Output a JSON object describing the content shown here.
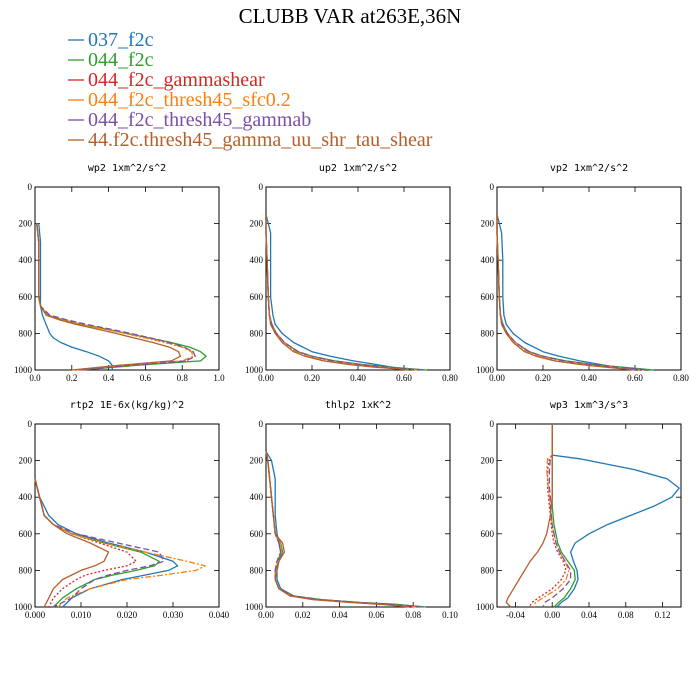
{
  "figure": {
    "title": "CLUBB VAR at263E,36N"
  },
  "legend": [
    {
      "name": "037_f2c",
      "color": "#1f77b4",
      "dash": "solid"
    },
    {
      "name": "044_f2c",
      "color": "#2ca02c",
      "dash": "solid"
    },
    {
      "name": "044_f2c_gammashear",
      "color": "#d62728",
      "dash": "dot"
    },
    {
      "name": "044_f2c_thresh45_sfc0.2",
      "color": "#ff7f0e",
      "dash": "dashdot"
    },
    {
      "name": "044_f2c_thresh45_gammab",
      "color": "#7b4fa6",
      "dash": "dash"
    },
    {
      "name": "44.f2c.thresh45_gamma_uu_shr_tau_shear",
      "color": "#b5602b",
      "dash": "solid"
    }
  ],
  "chart_data": [
    {
      "type": "line",
      "title": "wp2  1xm^2/s^2",
      "xlim": [
        0,
        1.0
      ],
      "ylim": [
        0,
        1000
      ],
      "y_inverted": true,
      "xticks": [
        0,
        0.2,
        0.4,
        0.6,
        0.8,
        1.0
      ],
      "xtick_labels": [
        "0.0",
        "0.2",
        "0.4",
        "0.6",
        "0.8",
        "1.0"
      ],
      "yticks": [
        0,
        200,
        400,
        600,
        800,
        1000
      ],
      "ytick_labels": [
        "0",
        "200",
        "400",
        "600",
        "800",
        "1000"
      ],
      "y": [
        200,
        300,
        400,
        500,
        600,
        650,
        700,
        725,
        750,
        775,
        800,
        825,
        850,
        875,
        900,
        925,
        950,
        975,
        1000
      ],
      "series": [
        {
          "values": [
            0.02,
            0.03,
            0.03,
            0.03,
            0.03,
            0.03,
            0.04,
            0.05,
            0.06,
            0.07,
            0.08,
            0.1,
            0.14,
            0.2,
            0.28,
            0.35,
            0.4,
            0.42,
            0.42
          ]
        },
        {
          "values": [
            0.01,
            0.02,
            0.02,
            0.02,
            0.02,
            0.03,
            0.07,
            0.15,
            0.25,
            0.38,
            0.5,
            0.62,
            0.74,
            0.84,
            0.9,
            0.93,
            0.9,
            0.55,
            0.25
          ]
        },
        {
          "values": [
            0.01,
            0.02,
            0.02,
            0.02,
            0.02,
            0.03,
            0.07,
            0.15,
            0.25,
            0.37,
            0.49,
            0.6,
            0.71,
            0.8,
            0.86,
            0.87,
            0.82,
            0.5,
            0.24
          ]
        },
        {
          "values": [
            0.01,
            0.02,
            0.02,
            0.02,
            0.02,
            0.03,
            0.07,
            0.15,
            0.25,
            0.37,
            0.49,
            0.6,
            0.71,
            0.8,
            0.85,
            0.86,
            0.8,
            0.48,
            0.22
          ]
        },
        {
          "values": [
            0.01,
            0.02,
            0.02,
            0.02,
            0.02,
            0.03,
            0.08,
            0.17,
            0.28,
            0.4,
            0.52,
            0.63,
            0.73,
            0.81,
            0.86,
            0.87,
            0.82,
            0.52,
            0.25
          ]
        },
        {
          "values": [
            0.01,
            0.02,
            0.02,
            0.02,
            0.02,
            0.03,
            0.06,
            0.13,
            0.22,
            0.33,
            0.44,
            0.54,
            0.64,
            0.73,
            0.78,
            0.79,
            0.74,
            0.45,
            0.2
          ]
        }
      ]
    },
    {
      "type": "line",
      "title": "up2  1xm^2/s^2",
      "xlim": [
        0,
        0.8
      ],
      "ylim": [
        0,
        1000
      ],
      "y_inverted": true,
      "xticks": [
        0,
        0.2,
        0.4,
        0.6,
        0.8
      ],
      "xtick_labels": [
        "0.00",
        "0.20",
        "0.40",
        "0.60",
        "0.80"
      ],
      "yticks": [
        0,
        200,
        400,
        600,
        800,
        1000
      ],
      "ytick_labels": [
        "0",
        "200",
        "400",
        "600",
        "800",
        "1000"
      ],
      "y": [
        150,
        250,
        400,
        600,
        700,
        750,
        800,
        850,
        900,
        925,
        950,
        970,
        985,
        995,
        1000
      ],
      "series": [
        {
          "values": [
            0.0,
            0.02,
            0.02,
            0.02,
            0.03,
            0.04,
            0.07,
            0.12,
            0.2,
            0.28,
            0.38,
            0.48,
            0.55,
            0.6,
            0.62
          ]
        },
        {
          "values": [
            0.0,
            0.0,
            0.005,
            0.01,
            0.015,
            0.025,
            0.045,
            0.08,
            0.14,
            0.2,
            0.3,
            0.42,
            0.55,
            0.65,
            0.7
          ]
        },
        {
          "values": [
            0.0,
            0.0,
            0.005,
            0.01,
            0.015,
            0.025,
            0.045,
            0.08,
            0.13,
            0.19,
            0.28,
            0.4,
            0.52,
            0.62,
            0.66
          ]
        },
        {
          "values": [
            0.0,
            0.0,
            0.005,
            0.01,
            0.015,
            0.025,
            0.045,
            0.08,
            0.13,
            0.19,
            0.28,
            0.4,
            0.52,
            0.62,
            0.66
          ]
        },
        {
          "values": [
            0.0,
            0.0,
            0.005,
            0.01,
            0.015,
            0.025,
            0.045,
            0.08,
            0.14,
            0.2,
            0.29,
            0.41,
            0.53,
            0.63,
            0.68
          ]
        },
        {
          "values": [
            0.0,
            0.0,
            0.005,
            0.01,
            0.015,
            0.02,
            0.04,
            0.07,
            0.12,
            0.17,
            0.25,
            0.36,
            0.48,
            0.58,
            0.62
          ]
        }
      ]
    },
    {
      "type": "line",
      "title": "vp2  1xm^2/s^2",
      "xlim": [
        0,
        0.8
      ],
      "ylim": [
        0,
        1000
      ],
      "y_inverted": true,
      "xticks": [
        0,
        0.2,
        0.4,
        0.6,
        0.8
      ],
      "xtick_labels": [
        "0.00",
        "0.20",
        "0.40",
        "0.60",
        "0.80"
      ],
      "yticks": [
        0,
        200,
        400,
        600,
        800,
        1000
      ],
      "ytick_labels": [
        "0",
        "200",
        "400",
        "600",
        "800",
        "1000"
      ],
      "y": [
        150,
        250,
        400,
        600,
        700,
        750,
        800,
        850,
        900,
        925,
        950,
        970,
        985,
        995,
        1000
      ],
      "series": [
        {
          "values": [
            0.0,
            0.02,
            0.025,
            0.025,
            0.03,
            0.04,
            0.07,
            0.12,
            0.2,
            0.27,
            0.36,
            0.45,
            0.52,
            0.58,
            0.6
          ]
        },
        {
          "values": [
            0.0,
            0.0,
            0.005,
            0.01,
            0.015,
            0.025,
            0.045,
            0.08,
            0.14,
            0.2,
            0.3,
            0.42,
            0.55,
            0.64,
            0.68
          ]
        },
        {
          "values": [
            0.0,
            0.0,
            0.005,
            0.01,
            0.015,
            0.025,
            0.045,
            0.08,
            0.13,
            0.19,
            0.28,
            0.4,
            0.52,
            0.6,
            0.64
          ]
        },
        {
          "values": [
            0.0,
            0.0,
            0.005,
            0.01,
            0.015,
            0.025,
            0.045,
            0.08,
            0.13,
            0.19,
            0.28,
            0.4,
            0.52,
            0.6,
            0.64
          ]
        },
        {
          "values": [
            0.0,
            0.0,
            0.005,
            0.01,
            0.015,
            0.025,
            0.045,
            0.08,
            0.14,
            0.2,
            0.29,
            0.41,
            0.53,
            0.62,
            0.66
          ]
        },
        {
          "values": [
            0.0,
            0.0,
            0.005,
            0.01,
            0.015,
            0.02,
            0.04,
            0.07,
            0.12,
            0.17,
            0.25,
            0.36,
            0.48,
            0.56,
            0.6
          ]
        }
      ]
    },
    {
      "type": "line",
      "title": "rtp2  1E-6x(kg/kg)^2",
      "xlim": [
        0,
        0.04
      ],
      "ylim": [
        0,
        1000
      ],
      "y_inverted": true,
      "xticks": [
        0,
        0.01,
        0.02,
        0.03,
        0.04
      ],
      "xtick_labels": [
        "0.000",
        "0.010",
        "0.020",
        "0.030",
        "0.040"
      ],
      "yticks": [
        0,
        200,
        400,
        600,
        800,
        1000
      ],
      "ytick_labels": [
        "0",
        "200",
        "400",
        "600",
        "800",
        "1000"
      ],
      "y": [
        300,
        400,
        500,
        550,
        600,
        650,
        700,
        750,
        775,
        800,
        825,
        850,
        900,
        950,
        1000
      ],
      "series": [
        {
          "values": [
            0.0,
            0.001,
            0.003,
            0.005,
            0.009,
            0.016,
            0.024,
            0.03,
            0.031,
            0.029,
            0.024,
            0.019,
            0.012,
            0.008,
            0.006
          ]
        },
        {
          "values": [
            0.0,
            0.001,
            0.002,
            0.004,
            0.008,
            0.015,
            0.023,
            0.027,
            0.026,
            0.022,
            0.017,
            0.013,
            0.009,
            0.006,
            0.004
          ]
        },
        {
          "values": [
            0.0,
            0.001,
            0.002,
            0.004,
            0.008,
            0.014,
            0.02,
            0.022,
            0.02,
            0.015,
            0.011,
            0.009,
            0.006,
            0.004,
            0.003
          ]
        },
        {
          "values": [
            0.0,
            0.001,
            0.002,
            0.004,
            0.008,
            0.015,
            0.024,
            0.033,
            0.037,
            0.035,
            0.028,
            0.02,
            0.012,
            0.007,
            0.005
          ]
        },
        {
          "values": [
            0.0,
            0.001,
            0.002,
            0.004,
            0.009,
            0.018,
            0.027,
            0.028,
            0.025,
            0.02,
            0.016,
            0.013,
            0.01,
            0.008,
            0.004
          ]
        },
        {
          "values": [
            0.0,
            0.001,
            0.002,
            0.004,
            0.007,
            0.012,
            0.016,
            0.015,
            0.013,
            0.01,
            0.008,
            0.006,
            0.004,
            0.003,
            0.002
          ]
        }
      ]
    },
    {
      "type": "line",
      "title": "thlp2  1xK^2",
      "xlim": [
        0,
        0.1
      ],
      "ylim": [
        0,
        1000
      ],
      "y_inverted": true,
      "xticks": [
        0,
        0.02,
        0.04,
        0.06,
        0.08,
        0.1
      ],
      "xtick_labels": [
        "0.00",
        "0.02",
        "0.04",
        "0.06",
        "0.08",
        "0.10"
      ],
      "yticks": [
        0,
        200,
        400,
        600,
        800,
        1000
      ],
      "ytick_labels": [
        "0",
        "200",
        "400",
        "600",
        "800",
        "1000"
      ],
      "y": [
        150,
        200,
        300,
        400,
        500,
        600,
        650,
        700,
        750,
        800,
        850,
        900,
        940,
        960,
        975,
        985,
        1000
      ],
      "series": [
        {
          "values": [
            0.0,
            0.003,
            0.005,
            0.005,
            0.005,
            0.006,
            0.007,
            0.008,
            0.007,
            0.006,
            0.006,
            0.008,
            0.015,
            0.03,
            0.05,
            0.07,
            0.085
          ]
        },
        {
          "values": [
            0.0,
            0.001,
            0.002,
            0.003,
            0.004,
            0.005,
            0.008,
            0.009,
            0.007,
            0.005,
            0.005,
            0.007,
            0.015,
            0.03,
            0.05,
            0.07,
            0.087
          ]
        },
        {
          "values": [
            0.0,
            0.001,
            0.002,
            0.003,
            0.004,
            0.005,
            0.007,
            0.008,
            0.006,
            0.005,
            0.005,
            0.007,
            0.014,
            0.028,
            0.048,
            0.066,
            0.082
          ]
        },
        {
          "values": [
            0.0,
            0.001,
            0.002,
            0.003,
            0.004,
            0.005,
            0.008,
            0.008,
            0.006,
            0.005,
            0.005,
            0.007,
            0.014,
            0.028,
            0.048,
            0.066,
            0.082
          ]
        },
        {
          "values": [
            0.0,
            0.001,
            0.002,
            0.003,
            0.004,
            0.005,
            0.007,
            0.008,
            0.006,
            0.005,
            0.005,
            0.007,
            0.015,
            0.03,
            0.05,
            0.068,
            0.085
          ]
        },
        {
          "values": [
            0.0,
            0.001,
            0.002,
            0.003,
            0.004,
            0.005,
            0.009,
            0.01,
            0.007,
            0.006,
            0.005,
            0.007,
            0.013,
            0.026,
            0.045,
            0.062,
            0.078
          ]
        }
      ]
    },
    {
      "type": "line",
      "title": "wp3  1xm^3/s^3",
      "xlim": [
        -0.06,
        0.14
      ],
      "ylim": [
        0,
        1000
      ],
      "y_inverted": true,
      "xticks": [
        -0.04,
        0,
        0.04,
        0.08,
        0.12
      ],
      "xtick_labels": [
        "-0.04",
        "0.00",
        "0.04",
        "0.08",
        "0.12"
      ],
      "yticks": [
        0,
        200,
        400,
        600,
        800,
        1000
      ],
      "ytick_labels": [
        "0",
        "200",
        "400",
        "600",
        "800",
        "1000"
      ],
      "y": [
        0,
        100,
        170,
        190,
        250,
        300,
        350,
        400,
        450,
        500,
        550,
        600,
        650,
        700,
        750,
        800,
        850,
        900,
        950,
        975,
        1000
      ],
      "series": [
        {
          "values": [
            0.0,
            0.0,
            0.0,
            0.03,
            0.09,
            0.125,
            0.138,
            0.13,
            0.11,
            0.085,
            0.06,
            0.04,
            0.025,
            0.02,
            0.023,
            0.027,
            0.028,
            0.024,
            0.017,
            0.01,
            0.005
          ]
        },
        {
          "values": [
            0.0,
            0.0,
            0.0,
            0.0,
            0.0,
            0.0,
            0.0,
            0.0,
            0.0,
            0.001,
            0.002,
            0.004,
            0.006,
            0.01,
            0.017,
            0.024,
            0.025,
            0.02,
            0.013,
            0.007,
            0.002
          ]
        },
        {
          "values": [
            0.0,
            0.0,
            0.0,
            -0.003,
            -0.005,
            -0.005,
            -0.005,
            -0.004,
            -0.003,
            -0.002,
            -0.001,
            0.0,
            0.002,
            0.006,
            0.012,
            0.015,
            0.01,
            0.0,
            -0.015,
            -0.022,
            -0.025
          ]
        },
        {
          "values": [
            0.0,
            0.0,
            0.0,
            -0.005,
            -0.006,
            -0.005,
            -0.004,
            -0.003,
            -0.002,
            -0.001,
            0.0,
            0.002,
            0.004,
            0.008,
            0.014,
            0.018,
            0.015,
            0.006,
            -0.01,
            -0.018,
            -0.02
          ]
        },
        {
          "values": [
            0.0,
            0.0,
            0.0,
            -0.002,
            -0.003,
            -0.003,
            -0.003,
            -0.002,
            -0.002,
            -0.001,
            0.0,
            0.002,
            0.004,
            0.008,
            0.014,
            0.02,
            0.02,
            0.012,
            0.0,
            -0.008,
            -0.01
          ]
        },
        {
          "values": [
            0.0,
            0.0,
            0.0,
            0.0,
            0.0,
            0.0,
            0.0,
            0.0,
            -0.001,
            -0.002,
            -0.004,
            -0.006,
            -0.01,
            -0.016,
            -0.024,
            -0.03,
            -0.036,
            -0.042,
            -0.048,
            -0.05,
            -0.045
          ]
        }
      ]
    }
  ]
}
